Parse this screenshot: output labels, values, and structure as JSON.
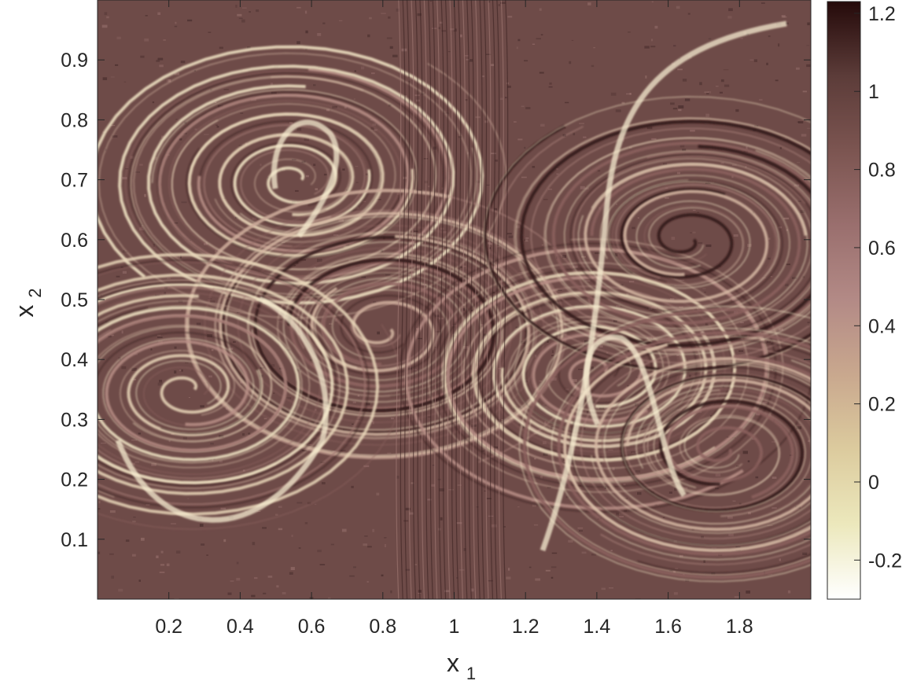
{
  "chart_data": {
    "type": "heatmap",
    "title": "",
    "xlabel": {
      "base": "x",
      "sub": "1"
    },
    "ylabel": {
      "base": "x",
      "sub": "2"
    },
    "xlim": [
      0,
      2
    ],
    "ylim": [
      0,
      1
    ],
    "x_ticks": [
      0.2,
      0.4,
      0.6,
      0.8,
      1,
      1.2,
      1.4,
      1.6,
      1.8
    ],
    "x_tick_labels": [
      "0.2",
      "0.4",
      "0.6",
      "0.8",
      "1",
      "1.2",
      "1.4",
      "1.6",
      "1.8"
    ],
    "y_ticks": [
      0.1,
      0.2,
      0.3,
      0.4,
      0.5,
      0.6,
      0.7,
      0.8,
      0.9
    ],
    "y_tick_labels": [
      "0.1",
      "0.2",
      "0.3",
      "0.4",
      "0.5",
      "0.6",
      "0.7",
      "0.8",
      "0.9"
    ],
    "grid": false,
    "colorbar": {
      "lim": [
        -0.3,
        1.23
      ],
      "ticks": [
        -0.2,
        0,
        0.2,
        0.4,
        0.6,
        0.8,
        1,
        1.2
      ],
      "tick_labels": [
        "-0.2",
        "0",
        "0.2",
        "0.4",
        "0.6",
        "0.8",
        "1",
        "1.2"
      ],
      "colormap": "pink",
      "colors": [
        "#ffffff",
        "#ece8bc",
        "#dccb9e",
        "#c9a88e",
        "#b38a86",
        "#9a6f6e",
        "#7c5551",
        "#5c3c39",
        "#250a0a"
      ]
    },
    "field": {
      "description_kind": "double-gyre stretching field",
      "base_color": "#6e4b48",
      "vortex_centers": [
        [
          0.55,
          0.7
        ],
        [
          0.8,
          0.45
        ],
        [
          1.4,
          0.38
        ],
        [
          1.65,
          0.6
        ],
        [
          0.25,
          0.35
        ],
        [
          1.75,
          0.25
        ]
      ]
    }
  }
}
